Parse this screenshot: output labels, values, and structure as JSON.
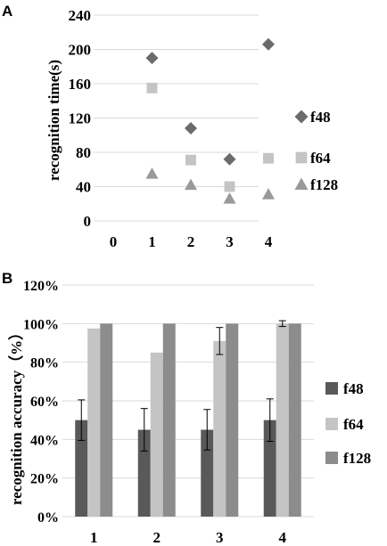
{
  "panels": {
    "a_letter": "A",
    "b_letter": "B"
  },
  "chart_data": [
    {
      "type": "scatter",
      "title": "",
      "xlabel": "",
      "ylabel": "recognition time(s)",
      "xlim": [
        0,
        4
      ],
      "ylim": [
        0,
        240
      ],
      "x_ticks": [
        "0",
        "1",
        "2",
        "3",
        "4"
      ],
      "y_ticks": [
        "0",
        "40",
        "80",
        "120",
        "160",
        "200",
        "240"
      ],
      "grid": true,
      "legend": "right",
      "series": [
        {
          "name": "f48",
          "marker": "diamond",
          "color": "#6b6b6b",
          "x": [
            1,
            2,
            3,
            4
          ],
          "y": [
            190,
            108,
            72,
            206
          ]
        },
        {
          "name": "f64",
          "marker": "square",
          "color": "#c4c4c4",
          "x": [
            1,
            2,
            3,
            4
          ],
          "y": [
            155,
            71,
            40,
            73
          ]
        },
        {
          "name": "f128",
          "marker": "triangle",
          "color": "#999999",
          "x": [
            1,
            2,
            3,
            4
          ],
          "y": [
            55,
            42,
            26,
            31
          ]
        }
      ]
    },
    {
      "type": "bar",
      "title": "",
      "xlabel": "",
      "ylabel": "recognition accuracy（%）",
      "categories": [
        "1",
        "2",
        "3",
        "4"
      ],
      "ylim": [
        0,
        120
      ],
      "y_ticks": [
        "0%",
        "20%",
        "40%",
        "60%",
        "80%",
        "100%",
        "120%"
      ],
      "grid": true,
      "legend": "right",
      "series": [
        {
          "name": "f48",
          "color": "#595959",
          "values": [
            50,
            45,
            45,
            50
          ],
          "errors": [
            10.5,
            11,
            10.5,
            11
          ]
        },
        {
          "name": "f64",
          "color": "#c4c4c4",
          "values": [
            97.5,
            85,
            91,
            100
          ],
          "errors": [
            0,
            0,
            7,
            1.5
          ]
        },
        {
          "name": "f128",
          "color": "#8c8c8c",
          "values": [
            100,
            100,
            100,
            100
          ],
          "errors": [
            0,
            0,
            0,
            0
          ]
        }
      ]
    }
  ]
}
